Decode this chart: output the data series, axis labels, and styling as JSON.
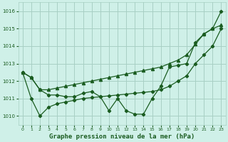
{
  "title": "Graphe pression niveau de la mer (hPa)",
  "bg_color": "#cff0e8",
  "grid_color": "#a8cfc4",
  "line_color": "#1a5c20",
  "xlim": [
    -0.5,
    23.5
  ],
  "ylim": [
    1009.5,
    1016.5
  ],
  "yticks": [
    1010,
    1011,
    1012,
    1013,
    1014,
    1015,
    1016
  ],
  "ytick_top": 1016,
  "xticks": [
    0,
    1,
    2,
    3,
    4,
    5,
    6,
    7,
    8,
    9,
    10,
    11,
    12,
    13,
    14,
    15,
    16,
    17,
    18,
    19,
    20,
    21,
    22,
    23
  ],
  "hours": [
    0,
    1,
    2,
    3,
    4,
    5,
    6,
    7,
    8,
    9,
    10,
    11,
    12,
    13,
    14,
    15,
    16,
    17,
    18,
    19,
    20,
    21,
    22,
    23
  ],
  "series_main": [
    1012.5,
    1012.2,
    1011.5,
    1011.2,
    1011.2,
    1011.1,
    1011.1,
    1011.3,
    1011.4,
    1011.1,
    1010.3,
    1011.0,
    1010.3,
    1010.1,
    1010.1,
    1011.0,
    1011.7,
    1012.8,
    1012.9,
    1013.0,
    1014.2,
    1014.7,
    1015.0,
    1016.0
  ],
  "series_upper": [
    1012.5,
    1012.2,
    1011.5,
    1011.5,
    1011.6,
    1011.7,
    1011.8,
    1011.9,
    1012.0,
    1012.1,
    1012.2,
    1012.3,
    1012.4,
    1012.5,
    1012.6,
    1012.7,
    1012.8,
    1013.0,
    1013.2,
    1013.5,
    1014.1,
    1014.7,
    1015.0,
    1015.2
  ],
  "series_lower": [
    1012.5,
    1011.0,
    1010.0,
    1010.5,
    1010.7,
    1010.8,
    1010.9,
    1011.0,
    1011.05,
    1011.1,
    1011.15,
    1011.2,
    1011.25,
    1011.3,
    1011.35,
    1011.4,
    1011.5,
    1011.7,
    1012.0,
    1012.3,
    1013.0,
    1013.5,
    1014.0,
    1015.0
  ]
}
